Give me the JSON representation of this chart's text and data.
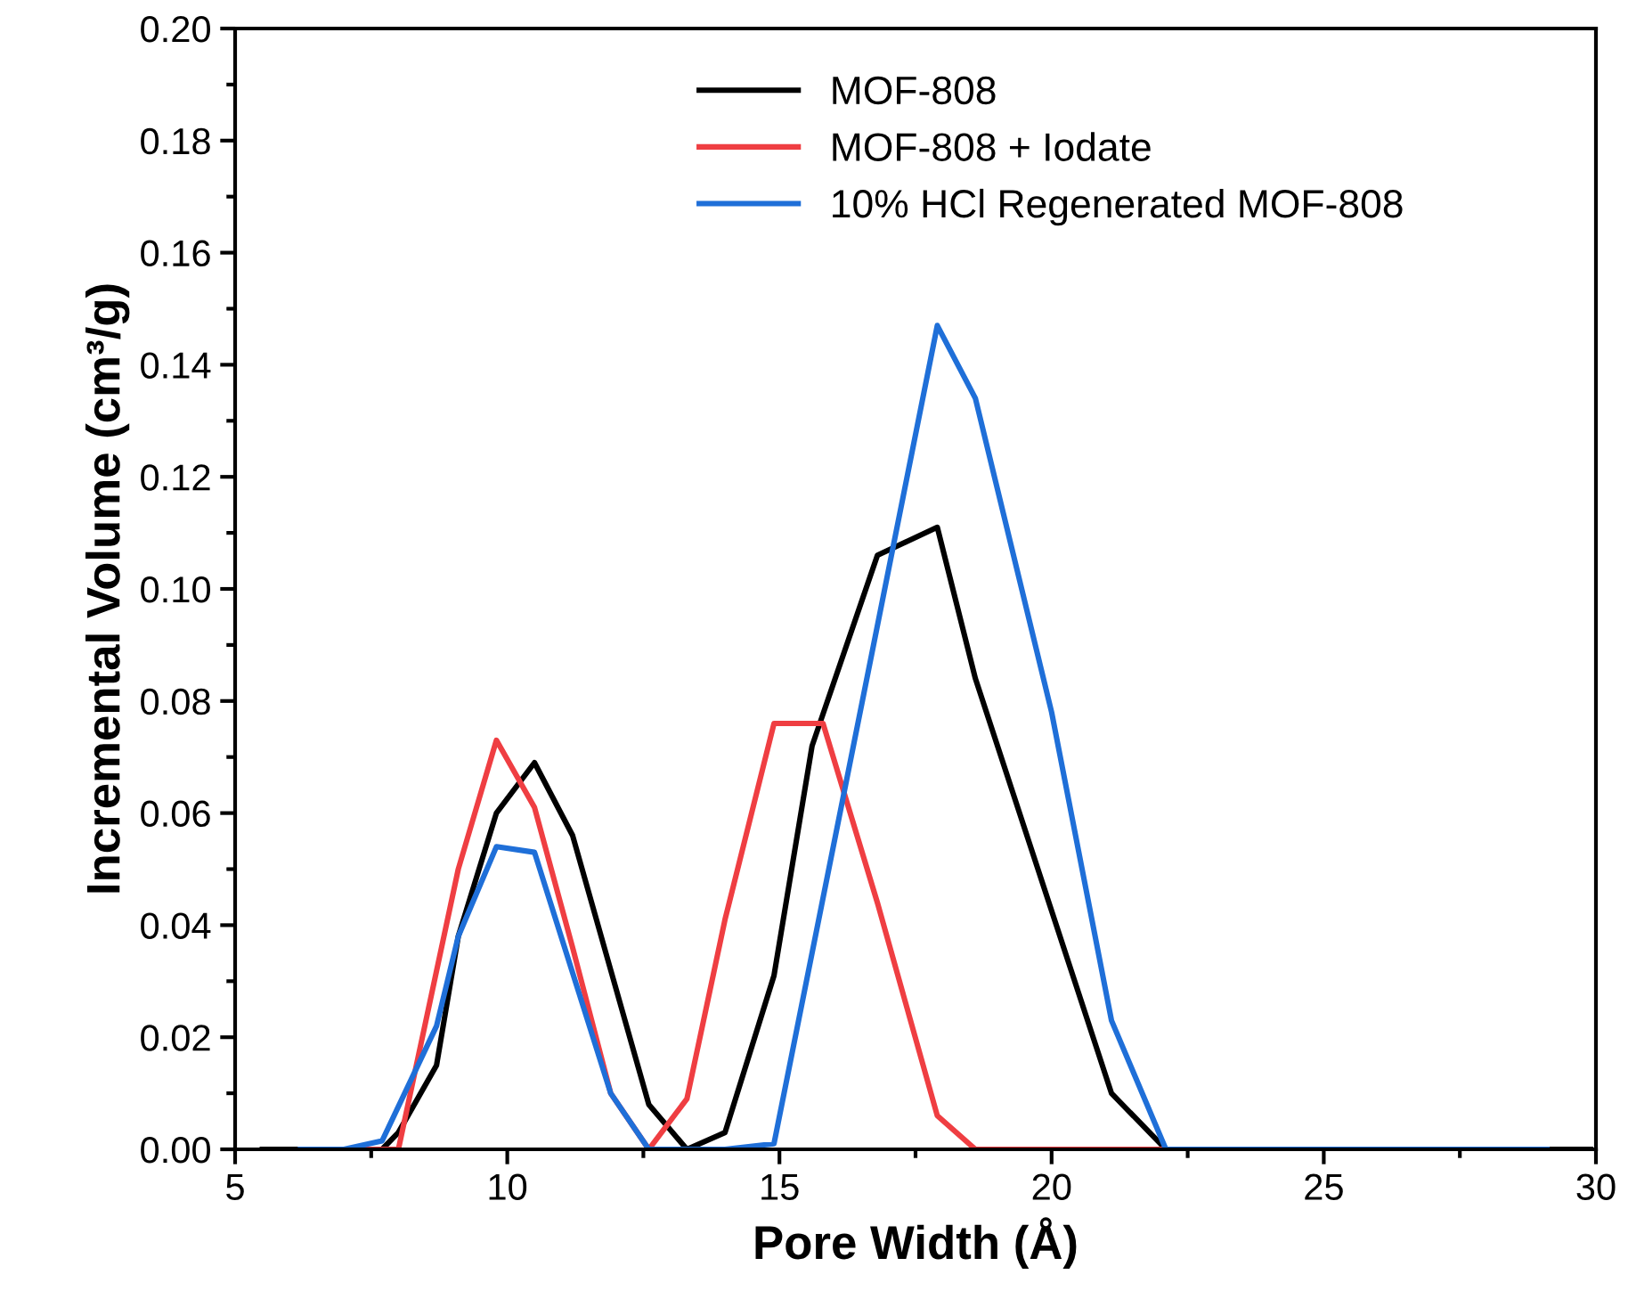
{
  "chart_data": {
    "type": "line",
    "xlabel": "Pore Width (Å)",
    "ylabel": "Incremental Volume (cm³/g)",
    "xlim": [
      5,
      30
    ],
    "xticks": [
      5,
      10,
      15,
      20,
      25,
      30
    ],
    "ylim": [
      0,
      0.2
    ],
    "yticks": [
      {
        "value": 0,
        "label": "0.00"
      },
      0.02,
      0.04,
      0.06,
      0.08,
      {
        "value": 0.1,
        "label": "0.10"
      },
      0.12,
      0.14,
      0.16,
      0.18,
      {
        "value": 0.2,
        "label": "0.20"
      }
    ],
    "legend": "top",
    "grid": false,
    "line_style": "solid",
    "marker": "none",
    "series": [
      {
        "name": "MOF-808",
        "color": "#000000",
        "x": [
          5.5,
          7.7,
          8.0,
          8.7,
          9.1,
          9.8,
          10.5,
          11.2,
          11.9,
          12.6,
          13.3,
          14.0,
          14.9,
          15.6,
          16.8,
          17.9,
          18.6,
          21.1,
          22.1,
          29.9
        ],
        "values": [
          0,
          0,
          0.003,
          0.015,
          0.038,
          0.06,
          0.069,
          0.056,
          0.032,
          0.008,
          0,
          0.003,
          0.031,
          0.072,
          0.106,
          0.111,
          0.084,
          0.01,
          0,
          0
        ]
      },
      {
        "name": "MOF-808 + Iodate",
        "color": "#ef3e42",
        "x": [
          7.0,
          8.0,
          9.1,
          9.8,
          10.5,
          11.2,
          11.9,
          12.6,
          13.3,
          14.0,
          14.9,
          15.8,
          16.8,
          17.9,
          18.6,
          22.1
        ],
        "values": [
          0,
          0,
          0.05,
          0.073,
          0.061,
          0.036,
          0.01,
          0,
          0.009,
          0.041,
          0.076,
          0.076,
          0.044,
          0.006,
          0,
          0
        ]
      },
      {
        "name": "10% HCl Regenerated MOF-808",
        "color": "#1f6fd8",
        "x": [
          6.2,
          7.0,
          7.7,
          8.7,
          9.1,
          9.8,
          10.5,
          11.9,
          12.6,
          13.3,
          14.0,
          14.9,
          17.9,
          18.6,
          20.0,
          21.1,
          22.1,
          29.1
        ],
        "values": [
          0,
          0,
          0.0015,
          0.022,
          0.038,
          0.054,
          0.053,
          0.01,
          0,
          0,
          0,
          0.001,
          0.147,
          0.134,
          0.078,
          0.023,
          0,
          0
        ]
      }
    ]
  }
}
